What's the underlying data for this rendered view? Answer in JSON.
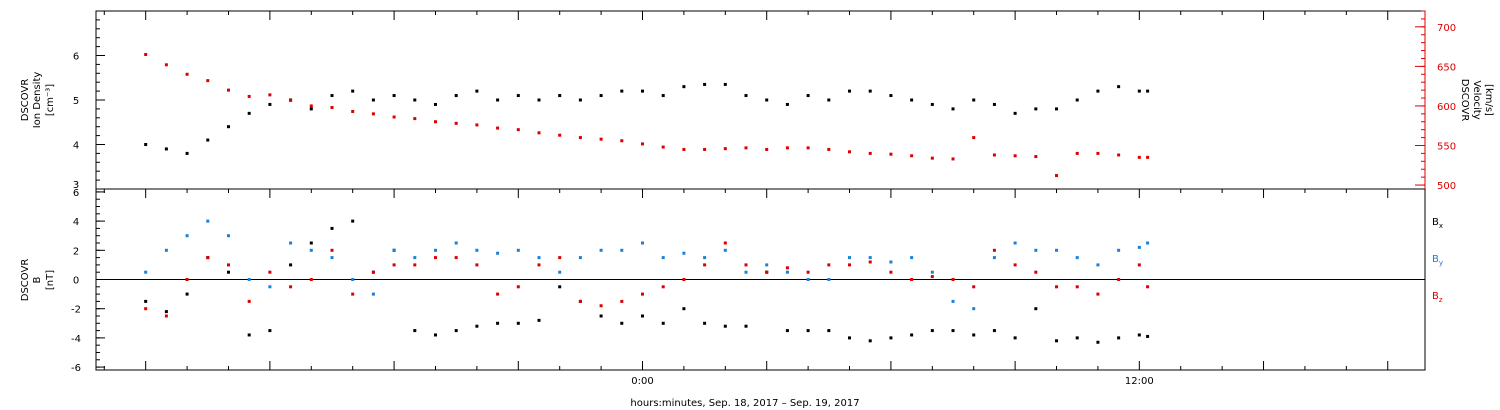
{
  "chart_data": [
    {
      "type": "scatter",
      "panel": "top",
      "left_axis": {
        "label_lines": [
          "DSCOVR",
          "Ion Density",
          "[cm⁻³]"
        ],
        "range": [
          3,
          7
        ],
        "ticks": [
          4,
          5,
          6
        ],
        "tick_labels": [
          "4",
          "5",
          "6"
        ],
        "edge_label": "3",
        "color": "#000000"
      },
      "right_axis": {
        "label_lines": [
          "DSCOVR",
          "Velocity",
          "[km/s]"
        ],
        "range": [
          495,
          720
        ],
        "ticks": [
          500,
          550,
          600,
          650,
          700
        ],
        "tick_labels": [
          "500",
          "550",
          "600",
          "650",
          "700"
        ],
        "color": "#dd0000"
      },
      "series": [
        {
          "axis": "left",
          "color": "#000000",
          "x": [
            -12.0,
            -11.5,
            -11.0,
            -10.5,
            -10.0,
            -9.5,
            -9.0,
            -8.5,
            -8.0,
            -7.5,
            -7.0,
            -6.5,
            -6.0,
            -5.5,
            -5.0,
            -4.5,
            -4.0,
            -3.5,
            -3.0,
            -2.5,
            -2.0,
            -1.5,
            -1.0,
            -0.5,
            0.0,
            0.5,
            1.0,
            1.5,
            2.0,
            2.5,
            3.0,
            3.5,
            4.0,
            4.5,
            5.0,
            5.5,
            6.0,
            6.5,
            7.0,
            7.5,
            8.0,
            8.5,
            9.0,
            9.5,
            10.0,
            10.5,
            11.0,
            11.5,
            12.0,
            12.2
          ],
          "y": [
            4.0,
            3.9,
            3.8,
            4.1,
            4.4,
            4.7,
            4.9,
            5.0,
            4.8,
            5.1,
            5.2,
            5.0,
            5.1,
            5.0,
            4.9,
            5.1,
            5.2,
            5.0,
            5.1,
            5.0,
            5.1,
            5.0,
            5.1,
            5.2,
            5.2,
            5.1,
            5.3,
            5.35,
            5.35,
            5.1,
            5.0,
            4.9,
            5.1,
            5.0,
            5.2,
            5.2,
            5.1,
            5.0,
            4.9,
            4.8,
            5.0,
            4.9,
            4.7,
            4.8,
            4.8,
            5.0,
            5.2,
            5.3,
            5.2,
            5.2
          ]
        },
        {
          "axis": "right",
          "color": "#dd0000",
          "x": [
            -12.0,
            -11.5,
            -11.0,
            -10.5,
            -10.0,
            -9.5,
            -9.0,
            -8.5,
            -8.0,
            -7.5,
            -7.0,
            -6.5,
            -6.0,
            -5.5,
            -5.0,
            -4.5,
            -4.0,
            -3.5,
            -3.0,
            -2.5,
            -2.0,
            -1.5,
            -1.0,
            -0.5,
            0.0,
            0.5,
            1.0,
            1.5,
            2.0,
            2.5,
            3.0,
            3.5,
            4.0,
            4.5,
            5.0,
            5.5,
            6.0,
            6.5,
            7.0,
            7.5,
            8.0,
            8.5,
            9.0,
            9.5,
            10.0,
            10.5,
            11.0,
            11.5,
            12.0,
            12.2
          ],
          "y": [
            665,
            652,
            640,
            632,
            620,
            612,
            614,
            607,
            600,
            598,
            593,
            590,
            586,
            584,
            580,
            578,
            576,
            572,
            570,
            566,
            563,
            560,
            558,
            556,
            552,
            548,
            545,
            545,
            546,
            547,
            545,
            547,
            547,
            545,
            542,
            540,
            539,
            537,
            534,
            533,
            560,
            538,
            537,
            536,
            512,
            540,
            540,
            538,
            535,
            535
          ]
        }
      ],
      "zero_line": false
    },
    {
      "type": "scatter",
      "panel": "bottom",
      "left_axis": {
        "label_lines": [
          "DSCOVR",
          "B",
          "[nT]"
        ],
        "range": [
          -6.2,
          6.2
        ],
        "ticks": [
          -6,
          -4,
          -2,
          0,
          2,
          4,
          6
        ],
        "tick_labels": [
          "-6",
          "-4",
          "-2",
          "0",
          "2",
          "4",
          "6"
        ],
        "color": "#000000"
      },
      "zero_line": true,
      "series": [
        {
          "name": "Bx",
          "label_main": "B",
          "label_sub": "x",
          "color": "#000000",
          "x": [
            -12.0,
            -11.5,
            -11.0,
            -10.5,
            -10.0,
            -9.5,
            -9.0,
            -8.5,
            -8.0,
            -7.5,
            -7.0,
            -6.5,
            -6.0,
            -5.5,
            -5.0,
            -4.5,
            -4.0,
            -3.5,
            -3.0,
            -2.5,
            -2.0,
            -1.5,
            -1.0,
            -0.5,
            0.0,
            0.5,
            1.0,
            1.5,
            2.0,
            2.5,
            3.0,
            3.5,
            4.0,
            4.5,
            5.0,
            5.5,
            6.0,
            6.5,
            7.0,
            7.5,
            8.0,
            8.5,
            9.0,
            9.5,
            10.0,
            10.5,
            11.0,
            11.5,
            12.0,
            12.2
          ],
          "y": [
            -1.5,
            -2.2,
            -1.0,
            1.5,
            0.5,
            -3.8,
            -3.5,
            1.0,
            2.5,
            3.5,
            4.0,
            0.5,
            2.0,
            -3.5,
            -3.8,
            -3.5,
            -3.2,
            -3.0,
            -3.0,
            -2.8,
            -0.5,
            -1.5,
            -2.5,
            -3.0,
            -2.5,
            -3.0,
            -2.0,
            -3.0,
            -3.2,
            -3.2,
            0.5,
            -3.5,
            -3.5,
            -3.5,
            -4.0,
            -4.2,
            -4.0,
            -3.8,
            -3.5,
            -3.5,
            -3.8,
            -3.5,
            -4.0,
            -2.0,
            -4.2,
            -4.0,
            -4.3,
            -4.0,
            -3.8,
            -3.9
          ]
        },
        {
          "name": "By",
          "label_main": "B",
          "label_sub": "y",
          "color": "#1a80d8",
          "x": [
            -12.0,
            -11.5,
            -11.0,
            -10.5,
            -10.0,
            -9.5,
            -9.0,
            -8.5,
            -8.0,
            -7.5,
            -7.0,
            -6.5,
            -6.0,
            -5.5,
            -5.0,
            -4.5,
            -4.0,
            -3.5,
            -3.0,
            -2.5,
            -2.0,
            -1.5,
            -1.0,
            -0.5,
            0.0,
            0.5,
            1.0,
            1.5,
            2.0,
            2.5,
            3.0,
            3.5,
            4.0,
            4.5,
            5.0,
            5.5,
            6.0,
            6.5,
            7.0,
            7.5,
            8.0,
            8.5,
            9.0,
            9.5,
            10.0,
            10.5,
            11.0,
            11.5,
            12.0,
            12.2
          ],
          "y": [
            0.5,
            2.0,
            3.0,
            4.0,
            3.0,
            0.0,
            -0.5,
            2.5,
            2.0,
            1.5,
            0.0,
            -1.0,
            2.0,
            1.5,
            2.0,
            2.5,
            2.0,
            1.8,
            2.0,
            1.5,
            0.5,
            1.5,
            2.0,
            2.0,
            2.5,
            1.5,
            1.8,
            1.5,
            2.0,
            0.5,
            1.0,
            0.5,
            0.0,
            0.0,
            1.5,
            1.5,
            1.2,
            1.5,
            0.5,
            -1.5,
            -2.0,
            1.5,
            2.5,
            2.0,
            2.0,
            1.5,
            1.0,
            2.0,
            2.2,
            2.5
          ]
        },
        {
          "name": "Bz",
          "label_main": "B",
          "label_sub": "z",
          "color": "#dd0000",
          "x": [
            -12.0,
            -11.5,
            -11.0,
            -10.5,
            -10.0,
            -9.5,
            -9.0,
            -8.5,
            -8.0,
            -7.5,
            -7.0,
            -6.5,
            -6.0,
            -5.5,
            -5.0,
            -4.5,
            -4.0,
            -3.5,
            -3.0,
            -2.5,
            -2.0,
            -1.5,
            -1.0,
            -0.5,
            0.0,
            0.5,
            1.0,
            1.5,
            2.0,
            2.5,
            3.0,
            3.5,
            4.0,
            4.5,
            5.0,
            5.5,
            6.0,
            6.5,
            7.0,
            7.5,
            8.0,
            8.5,
            9.0,
            9.5,
            10.0,
            10.5,
            11.0,
            11.5,
            12.0,
            12.2
          ],
          "y": [
            -2.0,
            -2.5,
            0.0,
            1.5,
            1.0,
            -1.5,
            0.5,
            -0.5,
            0.0,
            2.0,
            -1.0,
            0.5,
            1.0,
            1.0,
            1.5,
            1.5,
            1.0,
            -1.0,
            -0.5,
            1.0,
            1.5,
            -1.5,
            -1.8,
            -1.5,
            -1.0,
            -0.5,
            0.0,
            1.0,
            2.5,
            1.0,
            0.5,
            0.8,
            0.5,
            1.0,
            1.0,
            1.2,
            0.5,
            0.0,
            0.2,
            0.0,
            -0.5,
            2.0,
            1.0,
            0.5,
            -0.5,
            -0.5,
            -1.0,
            0.0,
            1.0,
            -0.5
          ]
        }
      ]
    }
  ],
  "x_axis": {
    "range": [
      -13.2,
      18.9
    ],
    "ticks": [
      0,
      12
    ],
    "tick_labels": [
      "0:00",
      "12:00"
    ],
    "minor_step": 1,
    "title": "hours:minutes, Sep. 18, 2017 – Sep. 19, 2017"
  }
}
